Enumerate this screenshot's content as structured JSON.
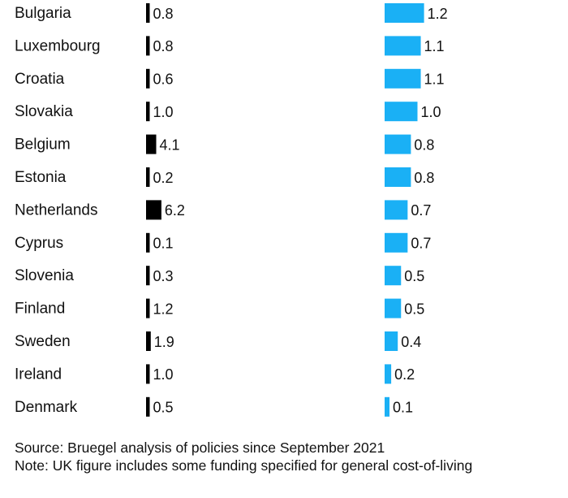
{
  "chart_data": {
    "type": "bar",
    "orientation": "horizontal",
    "categories": [
      "Bulgaria",
      "Luxembourg",
      "Croatia",
      "Slovakia",
      "Belgium",
      "Estonia",
      "Netherlands",
      "Cyprus",
      "Slovenia",
      "Finland",
      "Sweden",
      "Ireland",
      "Denmark"
    ],
    "series": [
      {
        "values": [
          0.8,
          0.8,
          0.6,
          1.0,
          4.1,
          0.2,
          6.2,
          0.1,
          0.3,
          1.2,
          1.9,
          1.0,
          0.5
        ],
        "color": "#000000"
      },
      {
        "values": [
          1.2,
          1.1,
          1.1,
          1.0,
          0.8,
          0.8,
          0.7,
          0.7,
          0.5,
          0.5,
          0.4,
          0.2,
          0.1
        ],
        "color": "#1ab0f5"
      }
    ]
  },
  "footer": {
    "source": "Source: Bruegel analysis of policies since September 2021",
    "note": "Note: UK figure includes some funding specified for general cost-of-living"
  }
}
